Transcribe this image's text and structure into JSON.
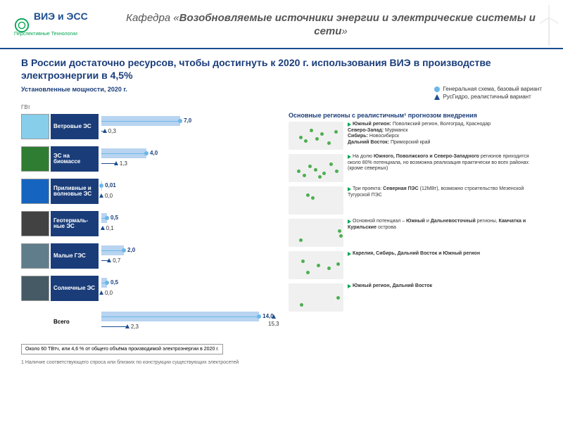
{
  "header": {
    "logo": "ВИЭ и ЭСС",
    "logo_sub": "Перспективные Технологии",
    "title_prefix": "Кафедра «",
    "title_bold": "Возобновляемые источники энергии и электрические системы и сети",
    "title_suffix": "»"
  },
  "main_title": "В России достаточно ресурсов, чтобы достигнуть к 2020 г. использования ВИЭ в производстве электроэнергии в 4,5%",
  "subtitle": "Установленные мощности, 2020 г.",
  "axis_unit": "ГВт",
  "legend": {
    "a": "Генеральная схема, базовый вариант",
    "b": "РусГидро, реалистичный вариант"
  },
  "chart": {
    "max": 15.3,
    "bar_color": "#b8d4f0",
    "line_color_a": "#6bb8e8",
    "line_color_b": "#1a4d8f",
    "categories": [
      {
        "label": "Ветровые ЭС",
        "val_a": 7.0,
        "val_b": 0.3,
        "txt_a": "7,0",
        "txt_b": "0,3",
        "img": "#87ceeb"
      },
      {
        "label": "ЭС на биомассе",
        "val_a": 4.0,
        "val_b": 1.3,
        "txt_a": "4,0",
        "txt_b": "1,3",
        "img": "#2e7d32"
      },
      {
        "label": "Приливные и волновые ЭС",
        "val_a": 0.01,
        "val_b": 0.0,
        "txt_a": "0,01",
        "txt_b": "0,0",
        "img": "#1565c0"
      },
      {
        "label": "Геотермаль- ные ЭС",
        "val_a": 0.5,
        "val_b": 0.1,
        "txt_a": "0,5",
        "txt_b": "0,1",
        "img": "#424242"
      },
      {
        "label": "Малые ГЭС",
        "val_a": 2.0,
        "val_b": 0.7,
        "txt_a": "2,0",
        "txt_b": "0,7",
        "img": "#607d8b"
      },
      {
        "label": "Солнечные ЭС",
        "val_a": 0.5,
        "val_b": 0.0,
        "txt_a": "0,5",
        "txt_b": "0,0",
        "img": "#455a64"
      }
    ],
    "total": {
      "label": "Всего",
      "val_a": 14.0,
      "val_b": 2.3,
      "val_c": 15.3,
      "txt_a": "14,0",
      "txt_b": "2,3",
      "txt_c": "15,3"
    }
  },
  "footnote_box": "Около 60 ТВтч, или 4,6 % от общего объёма производимой электроэнергии в 2020 г.",
  "footnote": "1 Наличие соответствующего спроса или близких по конструкции существующих электросетей",
  "right_header": "Основные регионы с реалистичным¹ прогнозом внедрения",
  "regions": [
    {
      "html": "<b>Южный регион:</b> Поволжский регион, Волгоград, Краснодар<br><b>Северо-Запад:</b> Мурманск<br><b>Сибирь:</b> Новосибирск<br><b>Дальний Восток:</b> Приморский край",
      "dots": [
        [
          15,
          20
        ],
        [
          22,
          25
        ],
        [
          30,
          10
        ],
        [
          45,
          15
        ],
        [
          55,
          28
        ],
        [
          65,
          12
        ],
        [
          38,
          22
        ]
      ]
    },
    {
      "html": "На долю <b>Южного, Поволжского и Северо-Западного</b> регионов приходится около 80% потенциала, но возможна реализация практически во всех районах (кроме северных)",
      "dots": [
        [
          12,
          22
        ],
        [
          20,
          28
        ],
        [
          28,
          15
        ],
        [
          36,
          20
        ],
        [
          48,
          25
        ],
        [
          58,
          12
        ],
        [
          66,
          22
        ],
        [
          42,
          30
        ]
      ]
    },
    {
      "html": "Три проекта: <b>Северная ПЭС</b> (12МВт), возможно строительство Мезенской Тугурской ПЭС",
      "dots": [
        [
          25,
          10
        ],
        [
          32,
          14
        ]
      ]
    },
    {
      "html": "Основной потенциал – <b>Южный</b> и <b>Дальневосточный</b> регионы, <b>Камчатка и Курильские</b> острова",
      "dots": [
        [
          15,
          28
        ],
        [
          70,
          15
        ],
        [
          72,
          22
        ]
      ]
    },
    {
      "html": "<b>Карелия, Сибирь, Дальний Восток и Южный регион</b>",
      "dots": [
        [
          18,
          12
        ],
        [
          40,
          18
        ],
        [
          55,
          22
        ],
        [
          68,
          16
        ],
        [
          25,
          28
        ]
      ]
    },
    {
      "html": "<b>Южный регион, Дальний Восток</b>",
      "dots": [
        [
          16,
          28
        ],
        [
          68,
          18
        ]
      ]
    }
  ],
  "colors": {
    "header_border": "#1a4d8f",
    "title_color": "#1a3d7a",
    "cat_bg": "#1a3d7a",
    "dot_green": "#4caf50",
    "bullet_green": "#00a651"
  }
}
